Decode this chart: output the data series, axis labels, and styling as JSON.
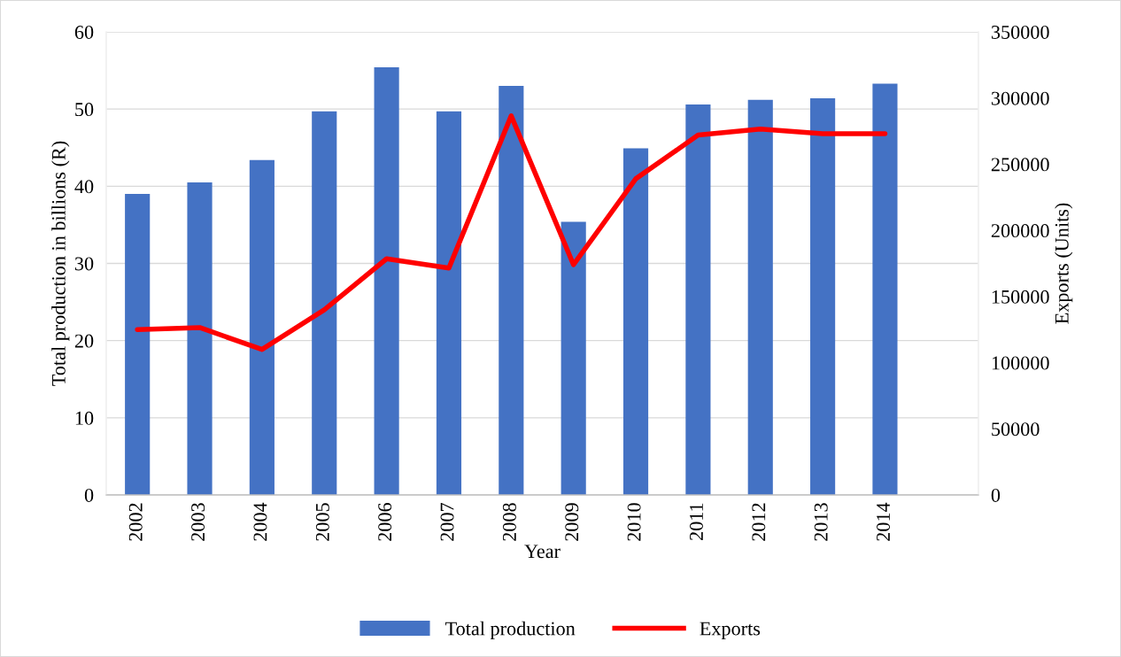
{
  "chart_data": {
    "type": "bar",
    "xlabel": "Year",
    "ylabel": "Total production in billions (R)",
    "y2label": "Exports (Units)",
    "categories": [
      "2002",
      "2003",
      "2004",
      "2005",
      "2006",
      "2007",
      "2008",
      "2009",
      "2010",
      "2011",
      "2012",
      "2013",
      "2014",
      null
    ],
    "series": [
      {
        "name": "Total production",
        "color": "#4472c4",
        "values": [
          39.0,
          40.5,
          43.4,
          49.7,
          55.4,
          49.7,
          53.0,
          35.4,
          44.9,
          50.6,
          51.2,
          51.4,
          53.3,
          null
        ]
      },
      {
        "name": "Exports",
        "type": "line",
        "axis": "y2",
        "color": "#ff0000",
        "values": [
          125000,
          126500,
          110000,
          140000,
          178500,
          171500,
          286500,
          174000,
          239000,
          272000,
          276500,
          273000,
          273000,
          null
        ]
      }
    ],
    "ylim": [
      0,
      60
    ],
    "yticks": [
      0,
      10,
      20,
      30,
      40,
      50,
      60
    ],
    "y2lim": [
      0,
      350000
    ],
    "y2ticks": [
      0,
      50000,
      100000,
      150000,
      200000,
      250000,
      300000,
      350000
    ],
    "grid": "y",
    "legend": "bottom",
    "marker": "none",
    "line_style": "solid"
  }
}
